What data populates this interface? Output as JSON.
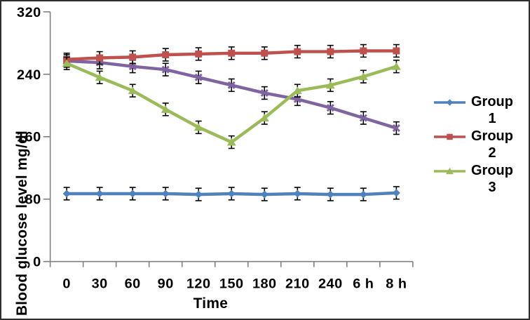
{
  "figure": {
    "background": "#ffffff",
    "border_color": "#2f2f2f"
  },
  "chart_data": {
    "type": "line",
    "title": "",
    "xlabel": "Time",
    "ylabel": "Blood glucose level mg/dl",
    "ylim": [
      0,
      320
    ],
    "yticks": [
      0,
      80,
      160,
      240,
      320
    ],
    "categories": [
      "0",
      "30",
      "60",
      "90",
      "120",
      "150",
      "180",
      "210",
      "240",
      "6 h",
      "8 h"
    ],
    "series": [
      {
        "name": "Group 1",
        "color": "#4F81BD",
        "marker": "diamond",
        "in_legend": true,
        "values": [
          87,
          87,
          87,
          87,
          86,
          87,
          86,
          87,
          86,
          86,
          88
        ]
      },
      {
        "name": "Group 2",
        "color": "#C0504D",
        "marker": "square",
        "in_legend": true,
        "values": [
          259,
          261,
          262,
          265,
          266,
          267,
          267,
          269,
          269,
          270,
          270
        ]
      },
      {
        "name": "Group 3",
        "color": "#9BBB59",
        "marker": "triangle",
        "in_legend": true,
        "values": [
          254,
          236,
          219,
          195,
          172,
          153,
          184,
          219,
          226,
          237,
          250
        ]
      },
      {
        "name": "",
        "color": "#8064A2",
        "marker": "x",
        "in_legend": false,
        "values": [
          257,
          255,
          250,
          246,
          236,
          226,
          216,
          208,
          197,
          184,
          171
        ]
      }
    ],
    "error_bar": 8,
    "legend_position": "right",
    "grid": false,
    "axis_color": "#808080",
    "text_color": "#000000"
  }
}
